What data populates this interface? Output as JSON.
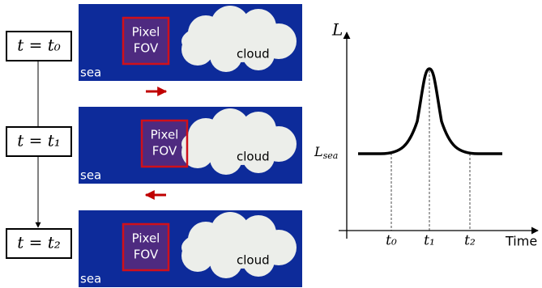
{
  "time_steps": [
    "t = t₀",
    "t = t₁",
    "t = t₂"
  ],
  "panels": [
    {
      "pixel": "Pixel",
      "fov": "FOV",
      "cloud": "cloud",
      "sea": "sea"
    },
    {
      "pixel": "Pixel",
      "fov": "FOV",
      "cloud": "cloud",
      "sea": "sea"
    },
    {
      "pixel": "Pixel",
      "fov": "FOV",
      "cloud": "cloud",
      "sea": "sea"
    }
  ],
  "graph": {
    "y_label": "L",
    "level_label": {
      "main": "L",
      "sub": "sea"
    },
    "x_ticks": [
      "t₀",
      "t₁",
      "t₂"
    ],
    "x_label": "Time"
  }
}
